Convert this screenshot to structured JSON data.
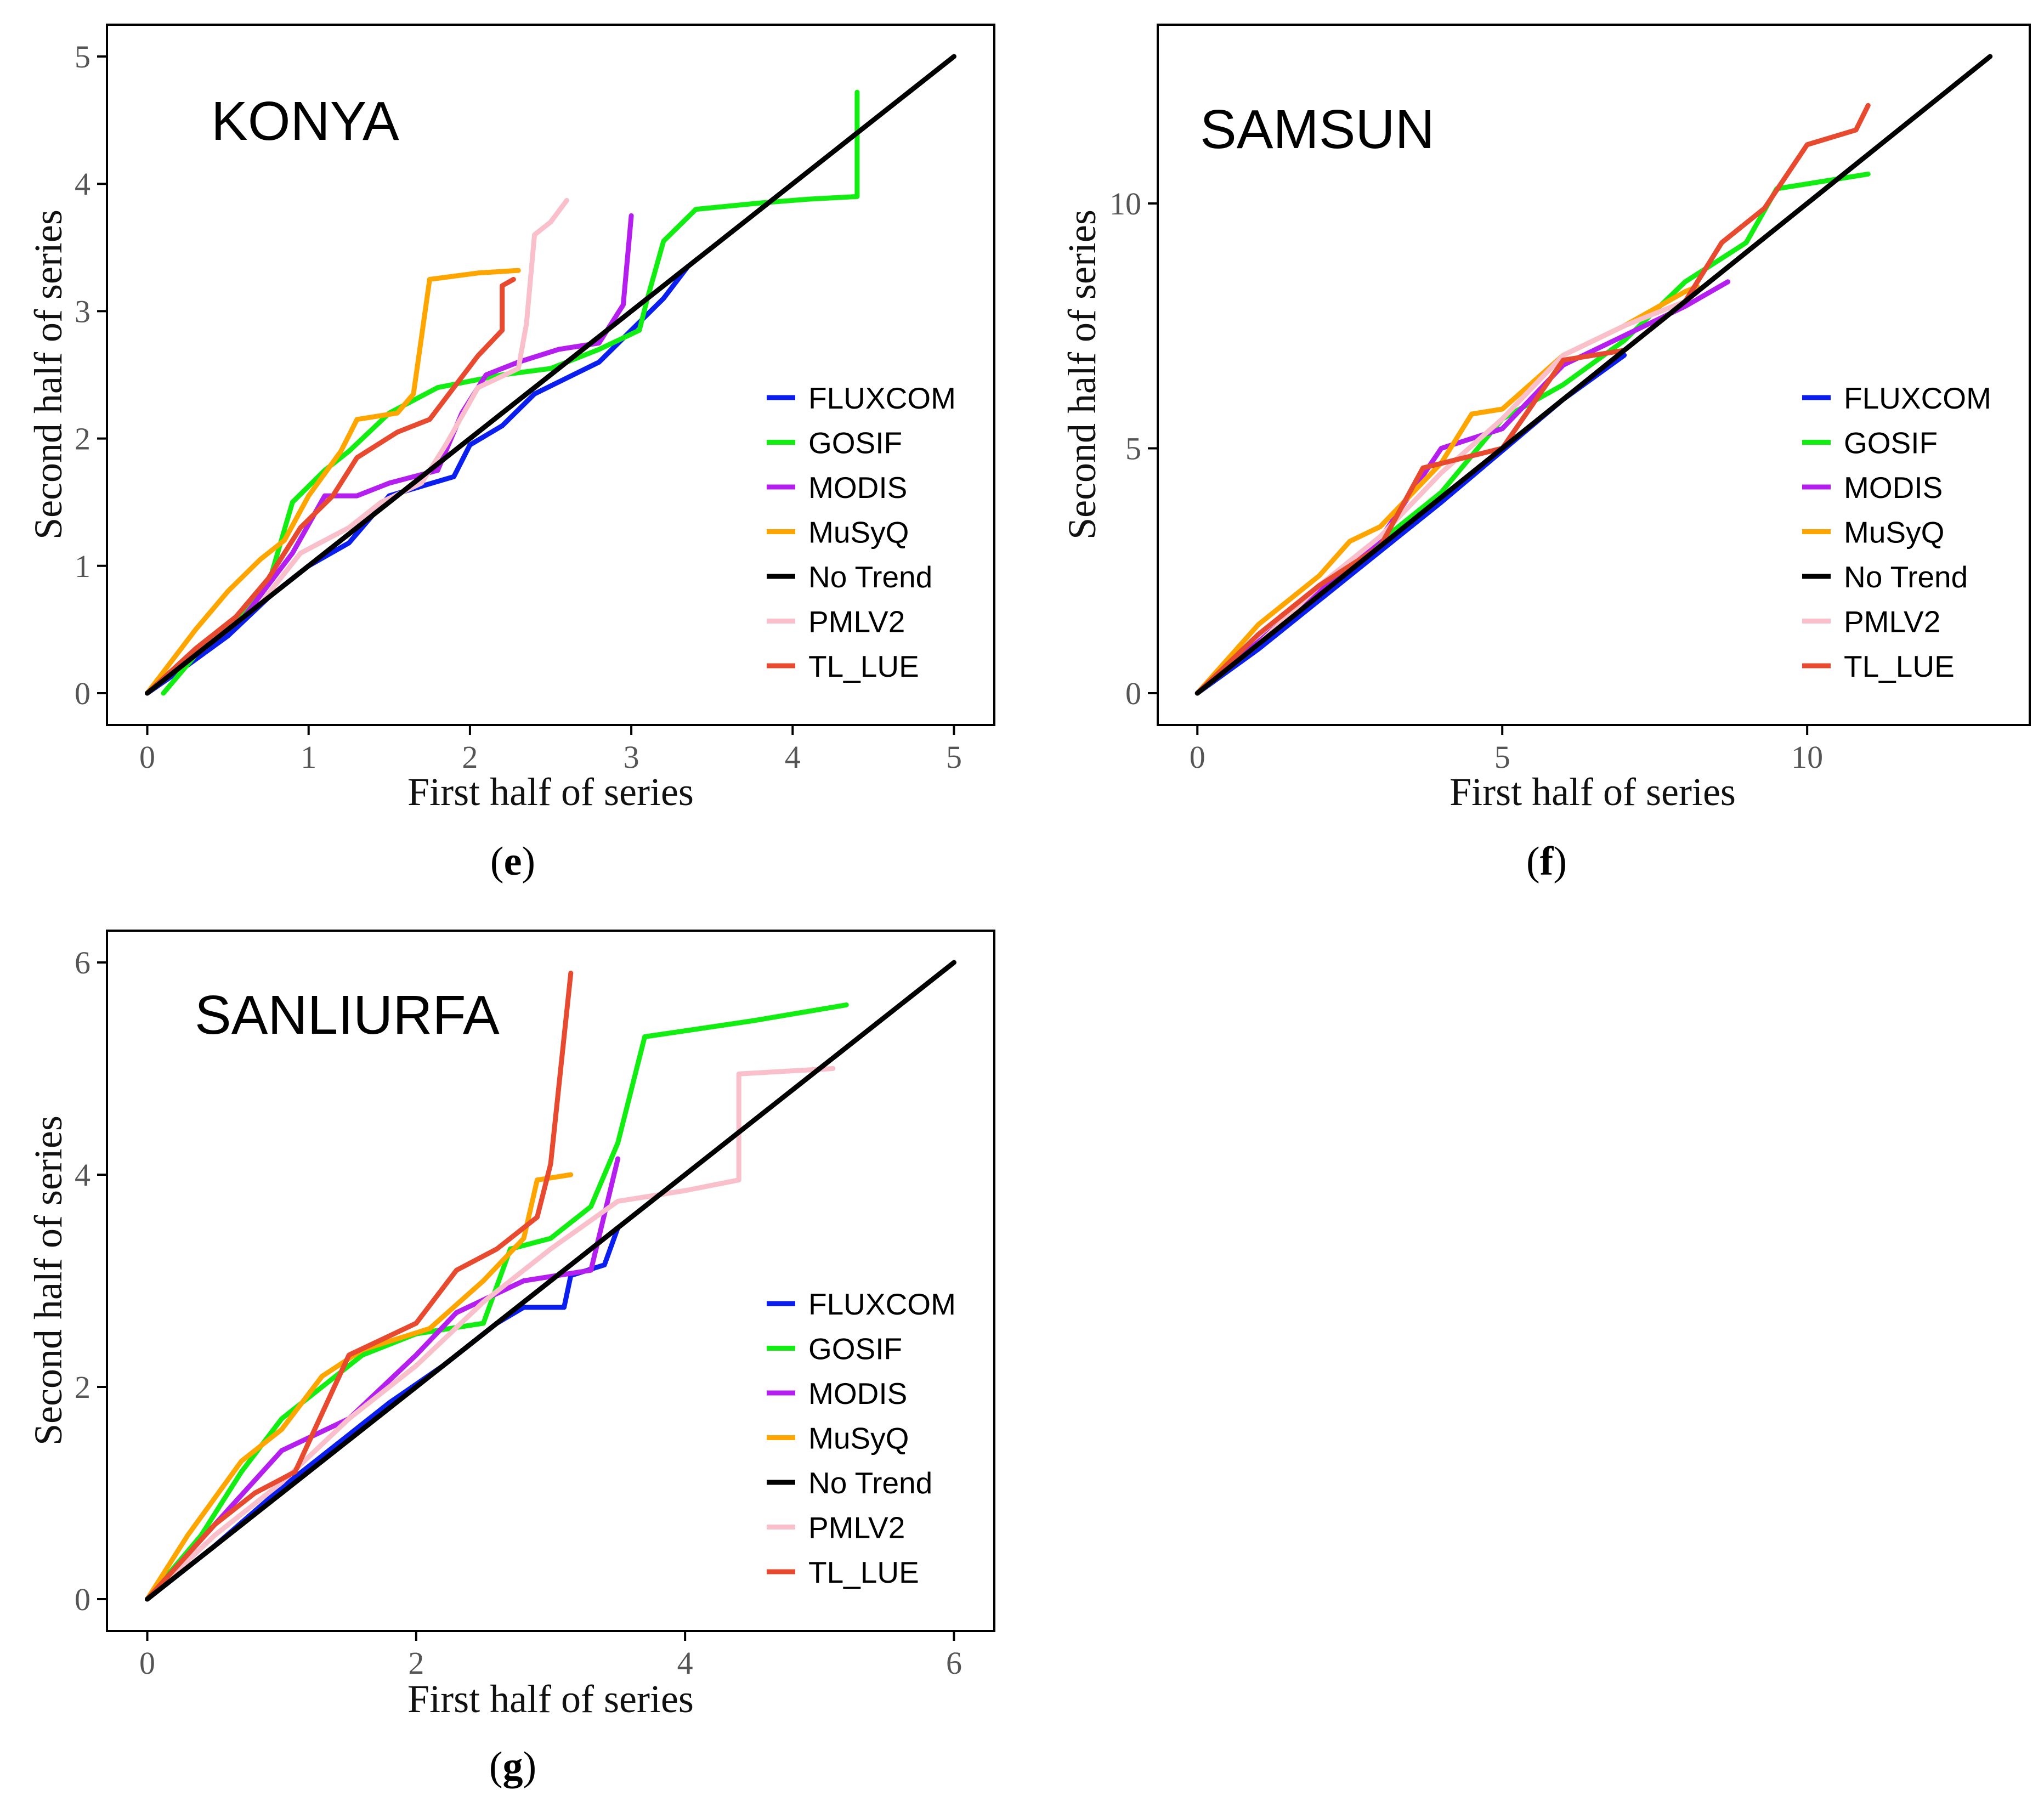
{
  "figure": {
    "legend_order": [
      "FLUXCOM",
      "GOSIF",
      "MODIS",
      "MuSyQ",
      "No Trend",
      "PMLV2",
      "TL_LUE"
    ],
    "colors": {
      "FLUXCOM": "#0a1ef0",
      "GOSIF": "#12ee12",
      "MODIS": "#b41eee",
      "MuSyQ": "#ffa500",
      "No Trend": "#000000",
      "PMLV2": "#f9c0cb",
      "TL_LUE": "#e84a2f"
    }
  },
  "chart_data": [
    {
      "id": "konya",
      "type": "line",
      "title": "KONYA",
      "caption_open": "(",
      "caption_letter": "e",
      "caption_close": ")",
      "xlabel": "First half of series",
      "ylabel": "Second half of series",
      "xlim": [
        -0.25,
        5.25
      ],
      "ylim": [
        -0.25,
        5.25
      ],
      "xticks": [
        0,
        1,
        2,
        3,
        4,
        5
      ],
      "yticks": [
        0,
        1,
        2,
        3,
        4,
        5
      ],
      "legend_position": "right",
      "series": [
        {
          "name": "FLUXCOM",
          "points": [
            [
              0,
              0
            ],
            [
              0.25,
              0.22
            ],
            [
              0.5,
              0.45
            ],
            [
              0.75,
              0.75
            ],
            [
              1.0,
              1.0
            ],
            [
              1.25,
              1.18
            ],
            [
              1.5,
              1.55
            ],
            [
              1.9,
              1.7
            ],
            [
              2.0,
              1.95
            ],
            [
              2.2,
              2.1
            ],
            [
              2.4,
              2.35
            ],
            [
              2.8,
              2.6
            ],
            [
              3.0,
              2.85
            ],
            [
              3.2,
              3.1
            ],
            [
              3.35,
              3.35
            ]
          ]
        },
        {
          "name": "GOSIF",
          "points": [
            [
              0.1,
              0
            ],
            [
              0.3,
              0.3
            ],
            [
              0.55,
              0.55
            ],
            [
              0.75,
              0.85
            ],
            [
              0.9,
              1.5
            ],
            [
              1.1,
              1.75
            ],
            [
              1.25,
              1.9
            ],
            [
              1.5,
              2.2
            ],
            [
              1.8,
              2.4
            ],
            [
              2.0,
              2.45
            ],
            [
              2.2,
              2.5
            ],
            [
              2.5,
              2.55
            ],
            [
              2.8,
              2.7
            ],
            [
              3.05,
              2.85
            ],
            [
              3.1,
              3.1
            ],
            [
              3.2,
              3.55
            ],
            [
              3.4,
              3.8
            ],
            [
              3.8,
              3.85
            ],
            [
              4.1,
              3.88
            ],
            [
              4.4,
              3.9
            ],
            [
              4.4,
              4.72
            ]
          ]
        },
        {
          "name": "MODIS",
          "points": [
            [
              0,
              0
            ],
            [
              0.3,
              0.3
            ],
            [
              0.6,
              0.6
            ],
            [
              0.9,
              1.1
            ],
            [
              1.1,
              1.55
            ],
            [
              1.3,
              1.55
            ],
            [
              1.5,
              1.65
            ],
            [
              1.8,
              1.75
            ],
            [
              1.95,
              2.2
            ],
            [
              2.1,
              2.5
            ],
            [
              2.3,
              2.6
            ],
            [
              2.55,
              2.7
            ],
            [
              2.8,
              2.75
            ],
            [
              2.95,
              3.05
            ],
            [
              3.0,
              3.75
            ]
          ]
        },
        {
          "name": "MuSyQ",
          "points": [
            [
              0,
              0
            ],
            [
              0.3,
              0.5
            ],
            [
              0.5,
              0.8
            ],
            [
              0.7,
              1.05
            ],
            [
              0.85,
              1.2
            ],
            [
              1.0,
              1.55
            ],
            [
              1.2,
              1.9
            ],
            [
              1.3,
              2.15
            ],
            [
              1.55,
              2.2
            ],
            [
              1.65,
              2.35
            ],
            [
              1.7,
              2.8
            ],
            [
              1.75,
              3.25
            ],
            [
              2.05,
              3.3
            ],
            [
              2.3,
              3.32
            ]
          ]
        },
        {
          "name": "No Trend",
          "points": [
            [
              0,
              0
            ],
            [
              5,
              5
            ]
          ]
        },
        {
          "name": "PMLV2",
          "points": [
            [
              0,
              0
            ],
            [
              0.4,
              0.4
            ],
            [
              0.7,
              0.7
            ],
            [
              0.95,
              1.1
            ],
            [
              1.25,
              1.3
            ],
            [
              1.45,
              1.5
            ],
            [
              1.7,
              1.65
            ],
            [
              1.85,
              1.95
            ],
            [
              2.05,
              2.4
            ],
            [
              2.3,
              2.55
            ],
            [
              2.35,
              2.9
            ],
            [
              2.4,
              3.6
            ],
            [
              2.5,
              3.7
            ],
            [
              2.6,
              3.87
            ]
          ]
        },
        {
          "name": "TL_LUE",
          "points": [
            [
              0,
              0
            ],
            [
              0.3,
              0.35
            ],
            [
              0.55,
              0.6
            ],
            [
              0.75,
              0.9
            ],
            [
              0.95,
              1.3
            ],
            [
              1.15,
              1.55
            ],
            [
              1.3,
              1.85
            ],
            [
              1.55,
              2.05
            ],
            [
              1.75,
              2.15
            ],
            [
              1.9,
              2.4
            ],
            [
              2.05,
              2.65
            ],
            [
              2.2,
              2.85
            ],
            [
              2.2,
              3.2
            ],
            [
              2.27,
              3.25
            ]
          ]
        }
      ]
    },
    {
      "id": "samsun",
      "type": "line",
      "title": "SAMSUN",
      "caption_open": "(",
      "caption_letter": "f",
      "caption_close": ")",
      "xlabel": "First half of series",
      "ylabel": "Second half of series",
      "xlim": [
        -0.65,
        13.65
      ],
      "ylim": [
        -0.65,
        13.65
      ],
      "xticks": [
        0,
        5,
        10
      ],
      "yticks": [
        0,
        5,
        10
      ],
      "legend_position": "right",
      "series": [
        {
          "name": "FLUXCOM",
          "points": [
            [
              0,
              0
            ],
            [
              1,
              0.9
            ],
            [
              2,
              1.9
            ],
            [
              3,
              2.9
            ],
            [
              4,
              3.9
            ],
            [
              5,
              4.95
            ],
            [
              6,
              6
            ],
            [
              7,
              6.9
            ]
          ]
        },
        {
          "name": "GOSIF",
          "points": [
            [
              0,
              0
            ],
            [
              1,
              1.0
            ],
            [
              2,
              2.1
            ],
            [
              3,
              3.1
            ],
            [
              4,
              4.1
            ],
            [
              5,
              5.6
            ],
            [
              6,
              6.3
            ],
            [
              7,
              7.2
            ],
            [
              8,
              8.4
            ],
            [
              9,
              9.2
            ],
            [
              9.5,
              10.3
            ],
            [
              11,
              10.6
            ]
          ]
        },
        {
          "name": "MODIS",
          "points": [
            [
              0,
              0
            ],
            [
              1,
              1.05
            ],
            [
              2,
              2.1
            ],
            [
              3,
              3.15
            ],
            [
              4,
              5.0
            ],
            [
              5,
              5.4
            ],
            [
              6,
              6.7
            ],
            [
              7,
              7.3
            ],
            [
              8,
              7.9
            ],
            [
              8.7,
              8.4
            ]
          ]
        },
        {
          "name": "MuSyQ",
          "points": [
            [
              0,
              0
            ],
            [
              1,
              1.4
            ],
            [
              2,
              2.4
            ],
            [
              2.5,
              3.1
            ],
            [
              3,
              3.4
            ],
            [
              4,
              4.7
            ],
            [
              4.5,
              5.7
            ],
            [
              5,
              5.8
            ],
            [
              6,
              6.9
            ],
            [
              7,
              7.5
            ],
            [
              8,
              8.2
            ],
            [
              8.2,
              8.3
            ]
          ]
        },
        {
          "name": "No Trend",
          "points": [
            [
              0,
              0
            ],
            [
              13,
              13
            ]
          ]
        },
        {
          "name": "PMLV2",
          "points": [
            [
              0,
              0
            ],
            [
              1,
              1.0
            ],
            [
              2,
              2.2
            ],
            [
              3,
              3.2
            ],
            [
              4,
              4.5
            ],
            [
              5,
              5.6
            ],
            [
              6,
              6.9
            ],
            [
              7,
              7.5
            ],
            [
              8,
              8.0
            ]
          ]
        },
        {
          "name": "TL_LUE",
          "points": [
            [
              0,
              0
            ],
            [
              1,
              1.2
            ],
            [
              2,
              2.2
            ],
            [
              3,
              3.0
            ],
            [
              3.7,
              4.6
            ],
            [
              5,
              5.0
            ],
            [
              6,
              6.8
            ],
            [
              7,
              7.0
            ],
            [
              8,
              8.0
            ],
            [
              8.6,
              9.2
            ],
            [
              9.3,
              9.9
            ],
            [
              10,
              11.2
            ],
            [
              10.8,
              11.5
            ],
            [
              11,
              12.0
            ]
          ]
        }
      ]
    },
    {
      "id": "sanliurfa",
      "type": "line",
      "title": "SANLIURFA",
      "caption_open": "(",
      "caption_letter": "g",
      "caption_close": ")",
      "xlabel": "First half of series",
      "ylabel": "Second half of series",
      "xlim": [
        -0.3,
        6.3
      ],
      "ylim": [
        -0.3,
        6.3
      ],
      "xticks": [
        0,
        2,
        4,
        6
      ],
      "yticks": [
        0,
        2,
        4,
        6
      ],
      "legend_position": "right",
      "series": [
        {
          "name": "FLUXCOM",
          "points": [
            [
              0,
              0
            ],
            [
              0.5,
              0.5
            ],
            [
              1,
              1.05
            ],
            [
              1.5,
              1.55
            ],
            [
              1.8,
              1.85
            ],
            [
              2.2,
              2.2
            ],
            [
              2.6,
              2.6
            ],
            [
              2.8,
              2.75
            ],
            [
              3.1,
              2.75
            ],
            [
              3.15,
              3.05
            ],
            [
              3.4,
              3.15
            ],
            [
              3.5,
              3.5
            ]
          ]
        },
        {
          "name": "GOSIF",
          "points": [
            [
              0,
              0
            ],
            [
              0.4,
              0.6
            ],
            [
              0.7,
              1.2
            ],
            [
              1.0,
              1.7
            ],
            [
              1.3,
              2.0
            ],
            [
              1.6,
              2.3
            ],
            [
              2.0,
              2.5
            ],
            [
              2.5,
              2.6
            ],
            [
              2.7,
              3.3
            ],
            [
              3.0,
              3.4
            ],
            [
              3.3,
              3.7
            ],
            [
              3.5,
              4.3
            ],
            [
              3.7,
              5.3
            ],
            [
              4.5,
              5.45
            ],
            [
              5.2,
              5.6
            ]
          ]
        },
        {
          "name": "MODIS",
          "points": [
            [
              0,
              0
            ],
            [
              0.5,
              0.7
            ],
            [
              1.0,
              1.4
            ],
            [
              1.5,
              1.7
            ],
            [
              2.0,
              2.3
            ],
            [
              2.3,
              2.7
            ],
            [
              2.8,
              3.0
            ],
            [
              3.3,
              3.1
            ],
            [
              3.5,
              4.15
            ]
          ]
        },
        {
          "name": "MuSyQ",
          "points": [
            [
              0,
              0
            ],
            [
              0.3,
              0.6
            ],
            [
              0.7,
              1.3
            ],
            [
              1.0,
              1.6
            ],
            [
              1.3,
              2.1
            ],
            [
              1.6,
              2.35
            ],
            [
              2.1,
              2.55
            ],
            [
              2.5,
              3.0
            ],
            [
              2.8,
              3.4
            ],
            [
              2.9,
              3.95
            ],
            [
              3.15,
              4.0
            ]
          ]
        },
        {
          "name": "No Trend",
          "points": [
            [
              0,
              0
            ],
            [
              6,
              6
            ]
          ]
        },
        {
          "name": "PMLV2",
          "points": [
            [
              0,
              0
            ],
            [
              0.5,
              0.6
            ],
            [
              1.0,
              1.1
            ],
            [
              1.5,
              1.7
            ],
            [
              2.0,
              2.2
            ],
            [
              2.5,
              2.8
            ],
            [
              3.0,
              3.3
            ],
            [
              3.5,
              3.75
            ],
            [
              4.0,
              3.85
            ],
            [
              4.4,
              3.95
            ],
            [
              4.4,
              4.95
            ],
            [
              5.1,
              5.0
            ]
          ]
        },
        {
          "name": "TL_LUE",
          "points": [
            [
              0,
              0
            ],
            [
              0.5,
              0.7
            ],
            [
              0.8,
              1.0
            ],
            [
              1.1,
              1.2
            ],
            [
              1.5,
              2.3
            ],
            [
              2.0,
              2.6
            ],
            [
              2.3,
              3.1
            ],
            [
              2.6,
              3.3
            ],
            [
              2.9,
              3.6
            ],
            [
              3.0,
              4.1
            ],
            [
              3.05,
              4.7
            ],
            [
              3.15,
              5.9
            ]
          ]
        }
      ]
    }
  ]
}
